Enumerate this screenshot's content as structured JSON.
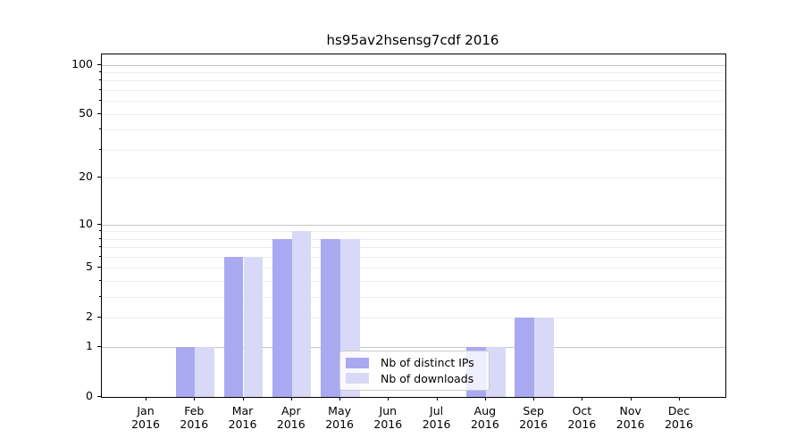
{
  "title": "hs95av2hsensg7cdf 2016",
  "chart_data": {
    "type": "bar",
    "title": "hs95av2hsensg7cdf 2016",
    "scale": "log1p",
    "categories": [
      "Jan 2016",
      "Feb 2016",
      "Mar 2016",
      "Apr 2016",
      "May 2016",
      "Jun 2016",
      "Jul 2016",
      "Aug 2016",
      "Sep 2016",
      "Oct 2016",
      "Nov 2016",
      "Dec 2016"
    ],
    "series": [
      {
        "name": "Nb of distinct IPs",
        "color": "#a9a9f2",
        "values": [
          0,
          1,
          6,
          8,
          8,
          0,
          0,
          1,
          2,
          0,
          0,
          0
        ]
      },
      {
        "name": "Nb of downloads",
        "color": "#d9d9f7",
        "values": [
          0,
          1,
          6,
          9,
          8,
          0,
          0,
          1,
          2,
          0,
          0,
          0
        ]
      }
    ],
    "yticks": [
      0,
      1,
      2,
      5,
      10,
      20,
      50,
      100
    ],
    "yticks_major_gridlines": [
      1,
      10,
      100
    ],
    "yticks_minor": [
      3,
      4,
      6,
      7,
      8,
      9,
      30,
      40,
      60,
      70,
      80,
      90
    ],
    "ylim": [
      0,
      115.6
    ],
    "xlabel": "",
    "ylabel": "",
    "grid": true,
    "legend_position": "lower-center-inside"
  },
  "colors": {
    "bar_dark": "#a9a9f2",
    "bar_light": "#d9d9f7",
    "grid_major": "#c6c6c6",
    "grid_minor": "#ececec",
    "axis": "#000000",
    "background": "#ffffff"
  }
}
